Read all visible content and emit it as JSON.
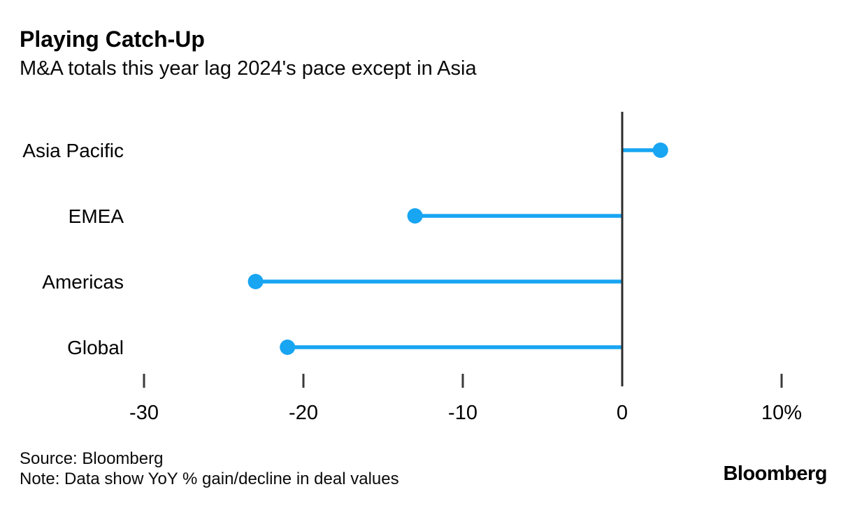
{
  "header": {
    "title": "Playing Catch-Up",
    "subtitle": "M&A totals this year lag 2024's pace except in Asia"
  },
  "chart_data": {
    "type": "bar",
    "variant": "lollipop",
    "orientation": "horizontal",
    "title": "Playing Catch-Up",
    "subtitle": "M&A totals this year lag 2024's pace except in Asia",
    "categories": [
      "Asia Pacific",
      "EMEA",
      "Americas",
      "Global"
    ],
    "values": [
      2.4,
      -13,
      -23,
      -21
    ],
    "unit": "%",
    "xlim": [
      -30,
      10
    ],
    "baseline": 0,
    "ticks": [
      -30,
      -20,
      -10,
      0,
      10
    ],
    "tick_labels": [
      "-30",
      "-20",
      "-10",
      "0",
      "10%"
    ],
    "grid": "off",
    "legend": "none",
    "accent_color": "#18a5f2",
    "axis_color": "#2d2d2d",
    "tick_color": "#3a3a3a"
  },
  "footer": {
    "source": "Source: Bloomberg",
    "note": "Note: Data show YoY % gain/decline in deal values",
    "brand": "Bloomberg"
  }
}
